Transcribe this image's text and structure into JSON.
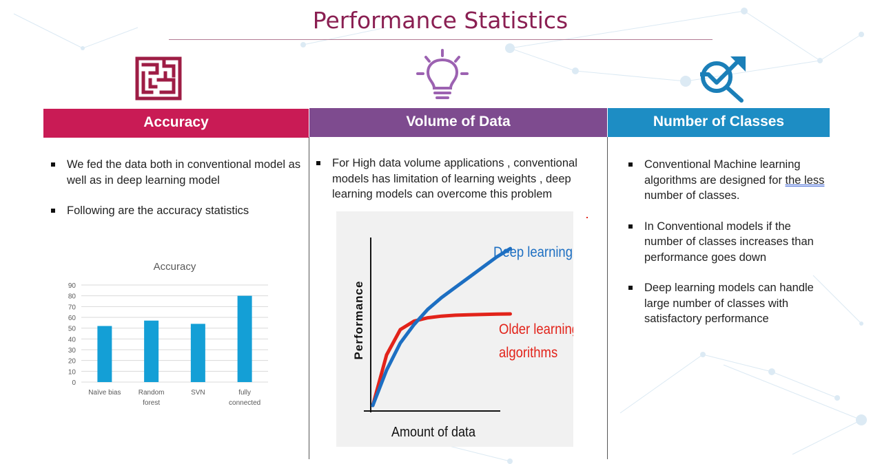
{
  "slide": {
    "title": "Performance Statistics"
  },
  "colors": {
    "title": "#8a1f52",
    "accuracy": "#c91b55",
    "volume": "#7e4b8f",
    "classes": "#1d8dc4",
    "bar": "#149fd6",
    "deep_curve": "#1d6fc2",
    "older_curve": "#e2231a"
  },
  "icons": {
    "accuracy": "maze-icon",
    "volume": "lightbulb-icon",
    "classes": "magnifier-target-icon"
  },
  "columns": {
    "accuracy": {
      "header": "Accuracy",
      "bullets": [
        "We fed the data both in conventional model as well as in deep learning model",
        "Following are the accuracy statistics"
      ]
    },
    "volume": {
      "header": "Volume of Data",
      "bullets": [
        "For High data volume applications , conventional models has limitation of learning weights , deep learning models can overcome this problem"
      ]
    },
    "classes": {
      "header": "Number of Classes",
      "bullets": [
        {
          "before": "Conventional Machine learning algorithms are designed for ",
          "underlined": "the less",
          "after": " number of classes."
        },
        "In Conventional models if the number of classes increases than performance goes down",
        "Deep learning models can handle large number of classes with satisfactory performance"
      ]
    }
  },
  "chart_data": [
    {
      "type": "bar",
      "title": "Accuracy",
      "categories": [
        [
          "Naïve bias"
        ],
        [
          "Random",
          "forest"
        ],
        [
          "SVN"
        ],
        [
          "fully",
          "connected"
        ]
      ],
      "values": [
        52,
        57,
        54,
        80
      ],
      "ylim": [
        0,
        90
      ],
      "yticks": [
        0,
        10,
        20,
        30,
        40,
        50,
        60,
        70,
        80,
        90
      ],
      "grid": true,
      "xlabel": "",
      "ylabel": ""
    },
    {
      "type": "line",
      "xlabel": "Amount of data",
      "ylabel": "Performance",
      "series": [
        {
          "name": "Deep learning",
          "label_lines": [
            "Deep learning"
          ],
          "x": [
            0,
            1,
            2,
            3,
            4,
            5,
            6,
            7,
            8,
            9,
            10
          ],
          "y": [
            0,
            2.1,
            3.7,
            4.8,
            5.7,
            6.4,
            7.0,
            7.6,
            8.2,
            8.8,
            9.3
          ]
        },
        {
          "name": "Older learning algorithms",
          "label_lines": [
            "Older learning",
            "algorithms"
          ],
          "x": [
            0,
            1,
            2,
            3,
            4,
            5,
            6,
            7,
            8,
            9,
            10
          ],
          "y": [
            0,
            3.0,
            4.5,
            5.0,
            5.2,
            5.3,
            5.35,
            5.38,
            5.4,
            5.42,
            5.43
          ]
        }
      ]
    }
  ]
}
